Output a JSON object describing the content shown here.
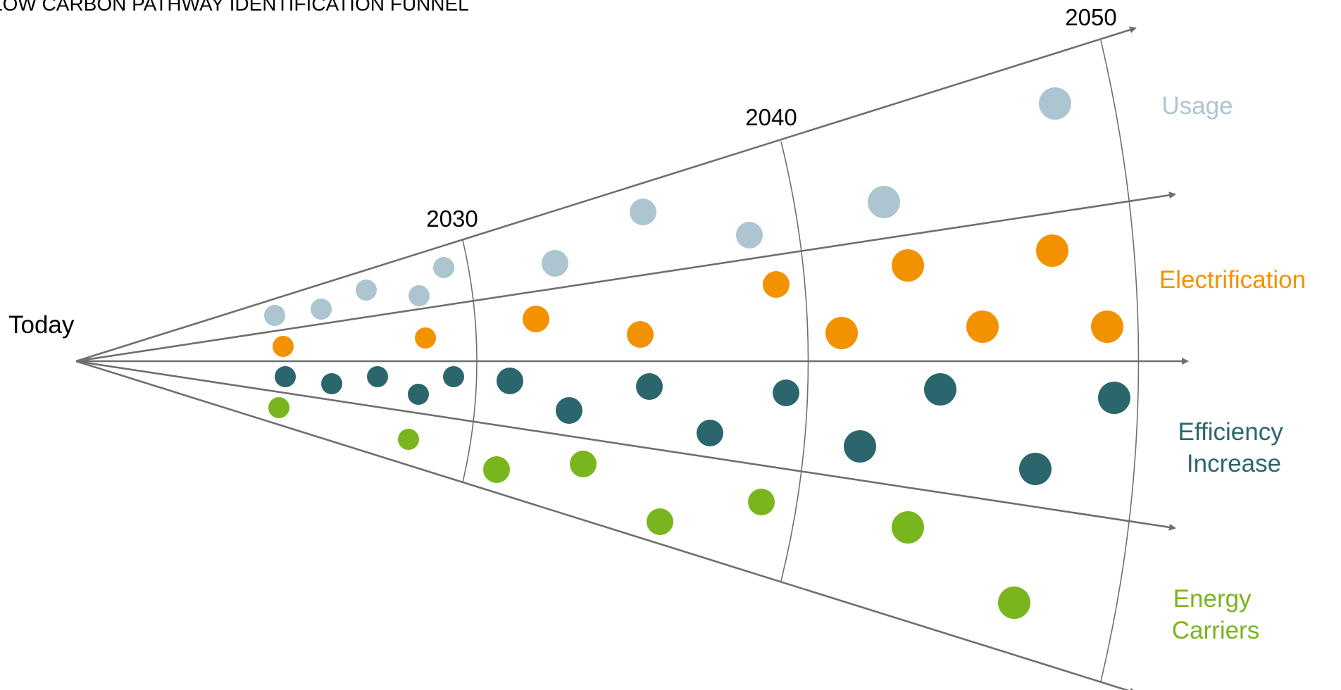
{
  "title": "LOW CARBON PATHWAY IDENTIFICATION FUNNEL",
  "start_label": "Today",
  "years": [
    "2030",
    "2040",
    "2050"
  ],
  "colors": {
    "usage": "#adc5d1",
    "electrification": "#f39200",
    "efficiency": "#2b666c",
    "carriers": "#79b51c",
    "lines": "#6f6f6f"
  },
  "categories": [
    {
      "key": "usage",
      "lines": [
        "Usage"
      ]
    },
    {
      "key": "electrification",
      "lines": [
        "Electrification"
      ]
    },
    {
      "key": "efficiency",
      "lines": [
        "Efficiency",
        "Increase"
      ]
    },
    {
      "key": "carriers",
      "lines": [
        "Energy",
        "Carriers"
      ]
    }
  ]
}
